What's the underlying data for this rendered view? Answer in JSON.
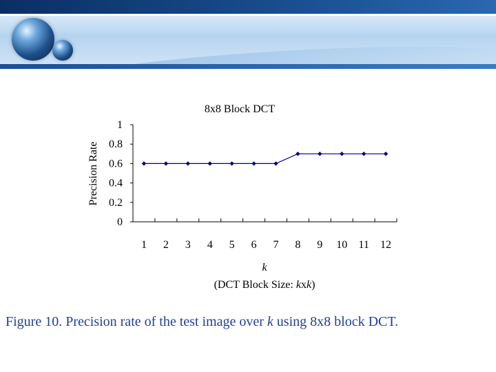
{
  "colors": {
    "series_line": "#000080",
    "series_marker": "#000080",
    "caption_text": "#1f3f9a"
  },
  "decorations": {
    "header_icon": "blue-glossy-spheres"
  },
  "chart_data": {
    "type": "line",
    "title": "8x8 Block DCT",
    "ylabel": "Precision Rate",
    "xlabel_var": "k",
    "xlabel_note_prefix": "(DCT Block Size: ",
    "xlabel_note_k1": "k",
    "xlabel_note_x": "x",
    "xlabel_note_k2": "k",
    "xlabel_note_suffix": ")",
    "categories": [
      "1",
      "2",
      "3",
      "4",
      "5",
      "6",
      "7",
      "8",
      "9",
      "10",
      "11",
      "12"
    ],
    "values": [
      0.6,
      0.6,
      0.6,
      0.6,
      0.6,
      0.6,
      0.6,
      0.7,
      0.7,
      0.7,
      0.7,
      0.7
    ],
    "ylim": [
      0,
      1
    ],
    "yticks": [
      "0",
      "0.2",
      "0.4",
      "0.6",
      "0.8",
      "1"
    ],
    "grid": false,
    "legend": false
  },
  "caption": {
    "prefix": "Figure 10.  Precision rate of the test image over ",
    "var": "k",
    "suffix": " using 8x8 block DCT."
  }
}
